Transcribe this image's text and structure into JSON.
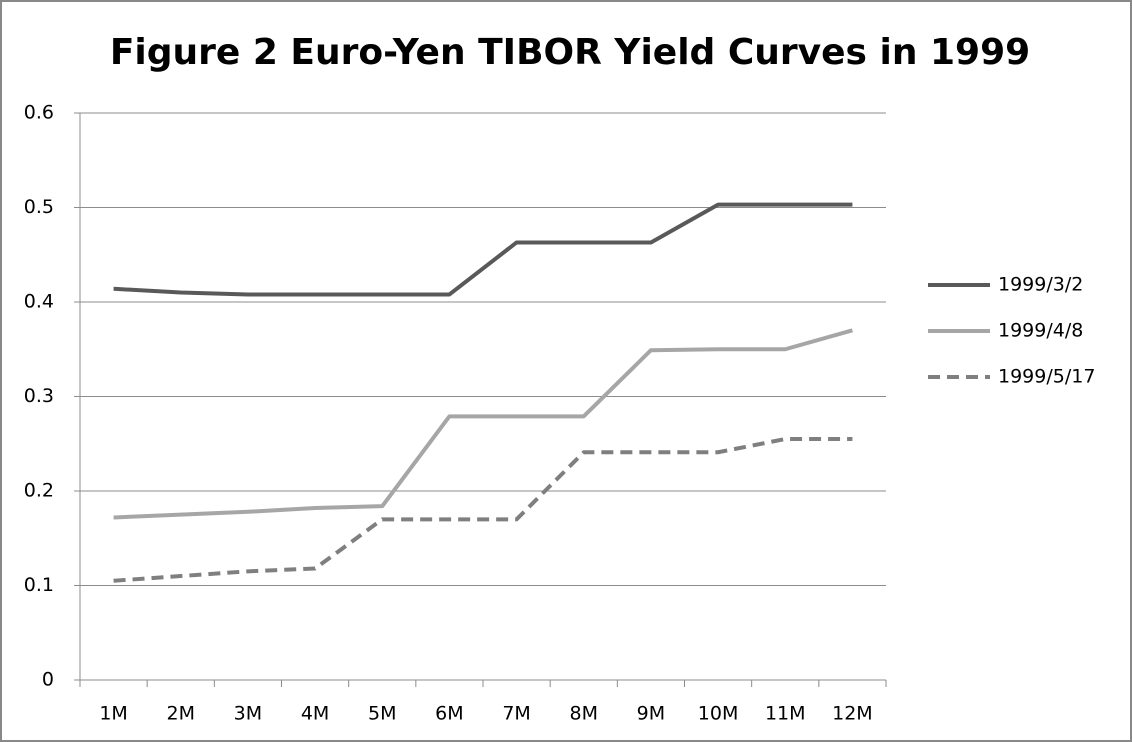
{
  "chart_data": {
    "type": "line",
    "title": "Figure 2 Euro-Yen TIBOR Yield Curves in 1999",
    "categories": [
      "1M",
      "2M",
      "3M",
      "4M",
      "5M",
      "6M",
      "7M",
      "8M",
      "9M",
      "10M",
      "11M",
      "12M"
    ],
    "series": [
      {
        "name": "1999/3/2",
        "color": "#595959",
        "dash": false,
        "values": [
          0.414,
          0.41,
          0.408,
          0.408,
          0.408,
          0.408,
          0.463,
          0.463,
          0.463,
          0.503,
          0.503,
          0.503
        ]
      },
      {
        "name": "1999/4/8",
        "color": "#a6a6a6",
        "dash": false,
        "values": [
          0.172,
          0.175,
          0.178,
          0.182,
          0.184,
          0.279,
          0.279,
          0.279,
          0.349,
          0.35,
          0.35,
          0.37
        ]
      },
      {
        "name": "1999/5/17",
        "color": "#7f7f7f",
        "dash": true,
        "values": [
          0.105,
          0.11,
          0.115,
          0.118,
          0.17,
          0.17,
          0.17,
          0.241,
          0.241,
          0.241,
          0.255,
          0.255
        ]
      }
    ],
    "ylim": [
      0,
      0.6
    ],
    "yticks": [
      0,
      0.1,
      0.2,
      0.3,
      0.4,
      0.5,
      0.6
    ],
    "grid": true,
    "legend": "right"
  }
}
